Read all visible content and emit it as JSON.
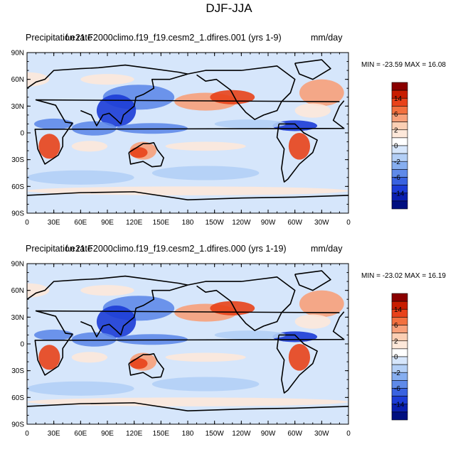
{
  "figure": {
    "title": "DJF-JJA"
  },
  "panels": [
    {
      "left_title": "Precipitation rate",
      "case_title": "f.e21.F2000climo.f19_f19.cesm2_1.dfires.001 (yrs 1-9)",
      "units": "mm/day",
      "min_label": "MIN = -23.59",
      "max_label": "MAX =  16.08"
    },
    {
      "left_title": "Precipitation rate",
      "case_title": "f.e21.F2000climo.f19_f19.cesm2_1.dfires.000 (yrs 1-19)",
      "units": "mm/day",
      "min_label": "MIN = -23.02",
      "max_label": "MAX =  16.19"
    }
  ],
  "map": {
    "lat_labels": [
      "90N",
      "60N",
      "30N",
      "0",
      "30S",
      "60S",
      "90S"
    ],
    "lat_values": [
      90,
      60,
      30,
      0,
      -30,
      -60,
      -90
    ],
    "lon_labels": [
      "0",
      "30E",
      "60E",
      "90E",
      "120E",
      "150E",
      "180",
      "150W",
      "120W",
      "90W",
      "60W",
      "30W",
      "0"
    ],
    "lon_values": [
      0,
      30,
      60,
      90,
      120,
      150,
      180,
      210,
      240,
      270,
      300,
      330,
      360
    ]
  },
  "colorbar": {
    "labels": [
      "14",
      "6",
      "2",
      "0",
      "-2",
      "-6",
      "-14"
    ],
    "colors": [
      "#8a0000",
      "#c81d00",
      "#e8421a",
      "#f2703f",
      "#f7a07a",
      "#fbcfb4",
      "#fde8da",
      "#ffffff",
      "#d6e6fb",
      "#b3cff6",
      "#86aef0",
      "#5f8ae9",
      "#3962e0",
      "#1c3cd6",
      "#0a1faf",
      "#000f80"
    ]
  },
  "colors": {
    "ocean_background": "#d6e6fb",
    "positive_strong": "#e8421a",
    "positive_medium": "#f7a07a",
    "positive_light": "#fde8da",
    "negative_light": "#b3cff6",
    "negative_medium": "#5f8ae9",
    "negative_strong": "#1c3cd6"
  }
}
